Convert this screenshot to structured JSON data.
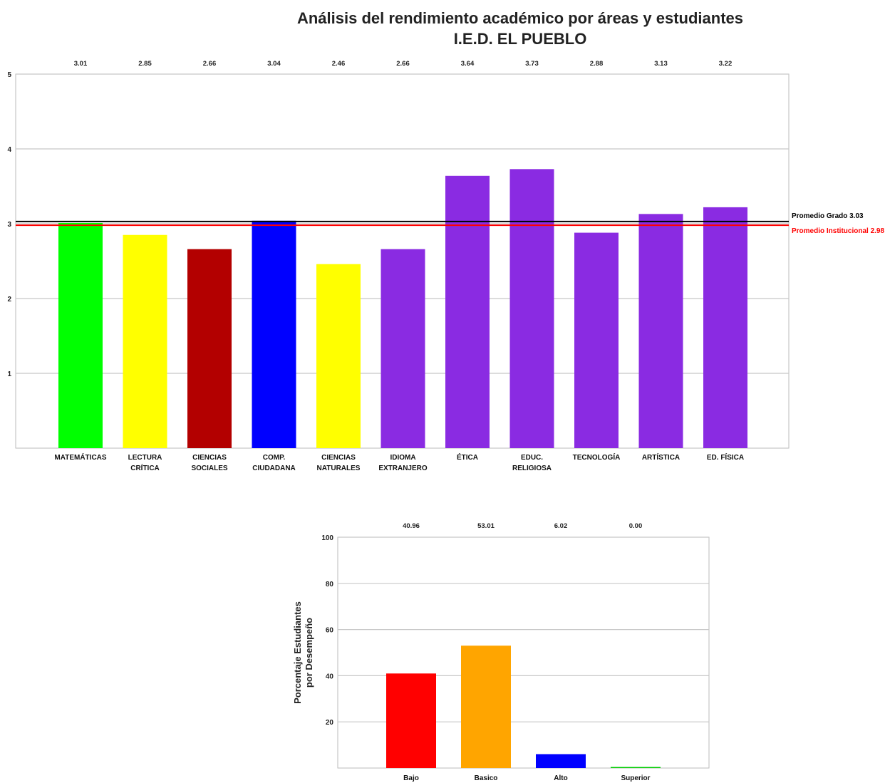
{
  "chart_data": [
    {
      "type": "bar",
      "title": "Análisis del rendimiento académico por áreas y estudiantes",
      "subtitle": "I.E.D. EL PUEBLO",
      "categories": [
        [
          "MATEMÁTICAS"
        ],
        [
          "LECTURA",
          "CRÍTICA"
        ],
        [
          "CIENCIAS",
          "SOCIALES"
        ],
        [
          "COMP.",
          "CIUDADANA"
        ],
        [
          "CIENCIAS",
          "NATURALES"
        ],
        [
          "IDIOMA",
          "EXTRANJERO"
        ],
        [
          "ÉTICA"
        ],
        [
          "EDUC.",
          "RELIGIOSA"
        ],
        [
          "TECNOLOGÍA"
        ],
        [
          "ARTÍSTICA"
        ],
        [
          "ED. FÍSICA"
        ]
      ],
      "values": [
        3.01,
        2.85,
        2.66,
        3.04,
        2.46,
        2.66,
        3.64,
        3.73,
        2.88,
        3.13,
        3.22
      ],
      "value_labels": [
        "3.01",
        "2.85",
        "2.66",
        "3.04",
        "2.46",
        "2.66",
        "3.64",
        "3.73",
        "2.88",
        "3.13",
        "3.22"
      ],
      "colors": [
        "#00ff00",
        "#ffff00",
        "#b30000",
        "#0000ff",
        "#ffff00",
        "#8a2be2",
        "#8a2be2",
        "#8a2be2",
        "#8a2be2",
        "#8a2be2",
        "#8a2be2"
      ],
      "ylim": [
        0,
        5
      ],
      "yticks": [
        1,
        2,
        3,
        4,
        5
      ],
      "grid": true,
      "reference_lines": [
        {
          "label": "Promedio Grado 3.03",
          "value": 3.03,
          "color": "#000000"
        },
        {
          "label": "Promedio Institucional 2.98",
          "value": 2.98,
          "color": "#ff0000"
        }
      ]
    },
    {
      "type": "bar",
      "ylabel": [
        "Porcentaje Estudiantes",
        "por Desempeño"
      ],
      "categories": [
        "Bajo",
        "Basico",
        "Alto",
        "Superior"
      ],
      "values": [
        40.96,
        53.01,
        6.02,
        0.0
      ],
      "value_labels": [
        "40.96",
        "53.01",
        "6.02",
        "0.00"
      ],
      "colors": [
        "#ff0000",
        "#ffa500",
        "#0000ff",
        "#00cc00"
      ],
      "ylim": [
        0,
        100
      ],
      "yticks": [
        20,
        40,
        60,
        80,
        100
      ],
      "grid": true
    }
  ]
}
